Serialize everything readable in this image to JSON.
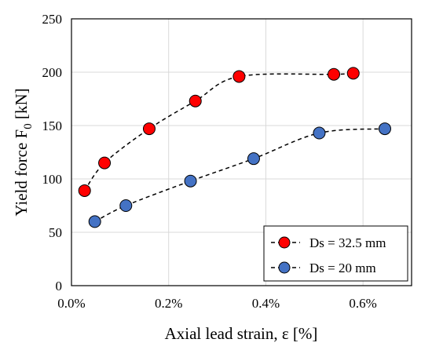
{
  "chart_data": {
    "type": "scatter",
    "title": "",
    "xlabel": "Axial lead strain,  ε [%]",
    "ylabel": "Yield force F",
    "ylabel_sub": "0",
    "ylabel_unit": " [kN]",
    "xlim": [
      0.0,
      0.007
    ],
    "ylim": [
      0,
      250
    ],
    "x_ticks": [
      0.0,
      0.002,
      0.004,
      0.006
    ],
    "x_tick_labels": [
      "0.0%",
      "0.2%",
      "0.4%",
      "0.6%"
    ],
    "y_ticks": [
      0,
      50,
      100,
      150,
      200,
      250
    ],
    "y_tick_labels": [
      "0",
      "50",
      "100",
      "150",
      "200",
      "250"
    ],
    "grid": true,
    "legend_position": "bottom-right",
    "series": [
      {
        "name": "Ds = 32.5 mm",
        "color": "#ff0000",
        "line_style": "dashed",
        "x": [
          0.00027,
          0.00068,
          0.0016,
          0.00255,
          0.00345,
          0.0054,
          0.0058
        ],
        "y": [
          89,
          115,
          147,
          173,
          196,
          198,
          199
        ]
      },
      {
        "name": "Ds = 20 mm",
        "color": "#4472c4",
        "line_style": "dashed",
        "x": [
          0.00048,
          0.00112,
          0.00245,
          0.00375,
          0.0051,
          0.00645
        ],
        "y": [
          60,
          75,
          98,
          119,
          143,
          147
        ]
      }
    ]
  }
}
